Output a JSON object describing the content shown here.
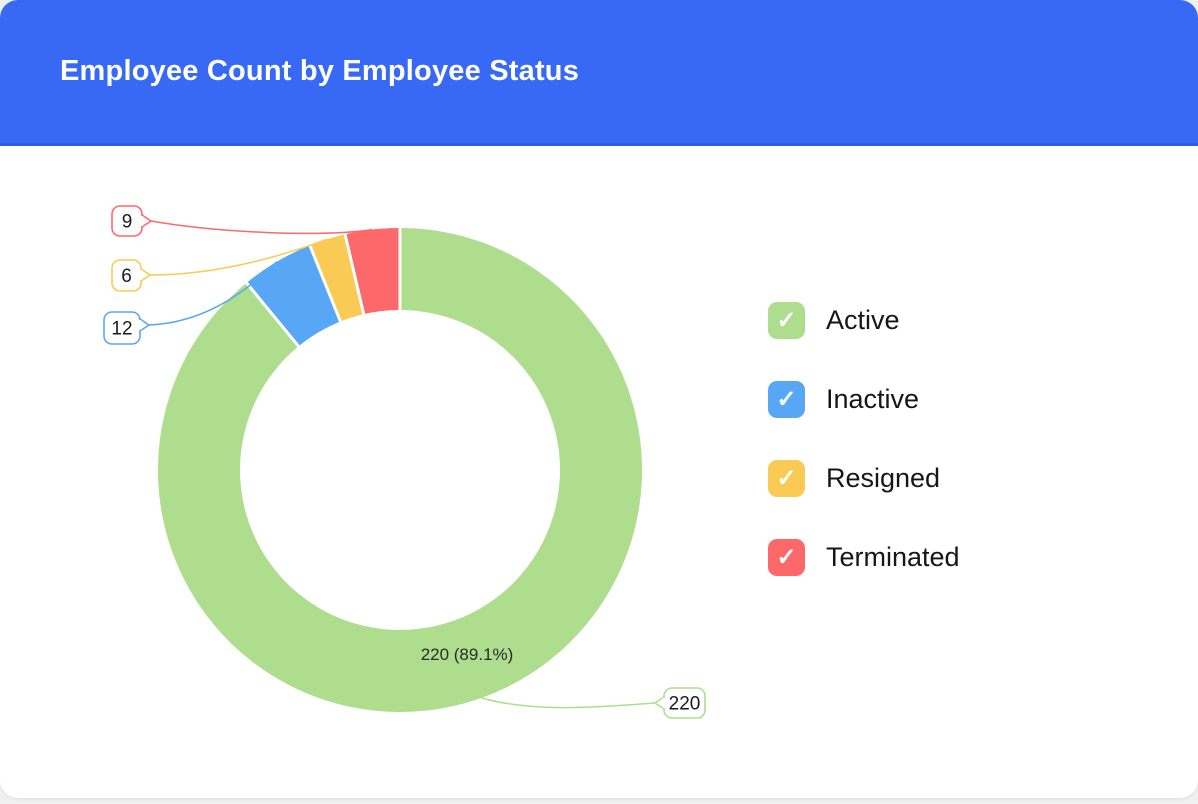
{
  "header": {
    "title": "Employee Count by Employee Status",
    "bg_color": "#3769F5",
    "text_color": "#ffffff"
  },
  "chart_data": {
    "type": "donut",
    "title": "Employee Count by Employee Status",
    "categories": [
      "Active",
      "Inactive",
      "Resigned",
      "Terminated"
    ],
    "values": [
      220,
      12,
      6,
      9
    ],
    "colors": [
      "#AEDE8D",
      "#58A7F4",
      "#FACB54",
      "#FD696B"
    ],
    "slice_label": "220 (89.1%)",
    "slice_label_category": "Active",
    "callouts": [
      {
        "category": "Terminated",
        "label": "9"
      },
      {
        "category": "Resigned",
        "label": "6"
      },
      {
        "category": "Inactive",
        "label": "12"
      },
      {
        "category": "Active",
        "label": "220"
      }
    ],
    "legend_position": "right",
    "start_angle_deg": 0,
    "direction": "clockwise",
    "inner_radius_ratio": 0.66
  },
  "legend": {
    "check_icon": "✓",
    "items": [
      {
        "label": "Active",
        "checked": true
      },
      {
        "label": "Inactive",
        "checked": true
      },
      {
        "label": "Resigned",
        "checked": true
      },
      {
        "label": "Terminated",
        "checked": true
      }
    ]
  }
}
